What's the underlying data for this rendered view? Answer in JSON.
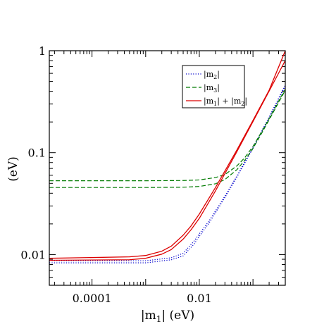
{
  "chart_data": {
    "type": "line",
    "xscale": "log",
    "yscale": "log",
    "xlim": [
      1.6e-05,
      0.4
    ],
    "ylim": [
      0.005,
      1
    ],
    "xlabel_main": "|m",
    "xlabel_sub": "1",
    "xlabel_rest": "| (eV)",
    "ylabel": "(eV)",
    "x_ticks": [
      {
        "value": 0.0001,
        "label": "0.0001"
      },
      {
        "value": 0.01,
        "label": "0.01"
      }
    ],
    "y_ticks": [
      {
        "value": 0.01,
        "label": "0.01"
      },
      {
        "value": 0.1,
        "label": "0.1"
      },
      {
        "value": 1,
        "label": "1"
      }
    ],
    "legend": {
      "position": "top-right",
      "entries": [
        {
          "key": "m2",
          "parts": [
            "|m",
            "2",
            "|"
          ],
          "color": "#0000cc",
          "dash": "1.2,2.2"
        },
        {
          "key": "m3",
          "parts": [
            "|m",
            "3",
            "|"
          ],
          "color": "#007a00",
          "dash": "6,3"
        },
        {
          "key": "sum",
          "parts": [
            "|m",
            "1",
            "| + |m",
            "2",
            "|"
          ],
          "color": "#dd0000",
          "dash": ""
        }
      ]
    },
    "series": [
      {
        "key": "m2",
        "color": "#0000cc",
        "dash": "1.2,2.2",
        "width": 1.2,
        "x": [
          1.6e-05,
          0.0001,
          0.001,
          0.003,
          0.005,
          0.008,
          0.01,
          0.015,
          0.02,
          0.03,
          0.05,
          0.1,
          0.2,
          0.4
        ],
        "y": [
          0.0083,
          0.0083,
          0.0083,
          0.0089,
          0.0097,
          0.0127,
          0.0151,
          0.0202,
          0.0257,
          0.0363,
          0.0575,
          0.11,
          0.22,
          0.45
        ]
      },
      {
        "key": "m2",
        "color": "#0000cc",
        "dash": "1.2,2.2",
        "width": 1.2,
        "x": [
          1.6e-05,
          0.0001,
          0.001,
          0.003,
          0.005,
          0.008,
          0.01,
          0.015,
          0.02,
          0.03,
          0.05,
          0.1,
          0.2,
          0.4
        ],
        "y": [
          0.0087,
          0.0087,
          0.0087,
          0.0093,
          0.0103,
          0.0136,
          0.016,
          0.0212,
          0.0268,
          0.0375,
          0.059,
          0.112,
          0.224,
          0.46
        ]
      },
      {
        "key": "m3",
        "color": "#007a00",
        "dash": "6,3",
        "width": 1.2,
        "x": [
          1.6e-05,
          0.0001,
          0.001,
          0.005,
          0.01,
          0.02,
          0.03,
          0.05,
          0.07,
          0.1,
          0.15,
          0.2,
          0.3,
          0.4
        ],
        "y": [
          0.0455,
          0.0455,
          0.0455,
          0.0458,
          0.0466,
          0.0495,
          0.0545,
          0.068,
          0.084,
          0.11,
          0.16,
          0.21,
          0.31,
          0.41
        ]
      },
      {
        "key": "m3",
        "color": "#007a00",
        "dash": "6,3",
        "width": 1.2,
        "x": [
          1.6e-05,
          0.0001,
          0.001,
          0.005,
          0.01,
          0.02,
          0.03,
          0.05,
          0.07,
          0.1,
          0.15,
          0.2,
          0.3,
          0.4
        ],
        "y": [
          0.053,
          0.053,
          0.053,
          0.0533,
          0.054,
          0.057,
          0.061,
          0.074,
          0.089,
          0.115,
          0.165,
          0.215,
          0.32,
          0.42
        ]
      },
      {
        "key": "sum",
        "color": "#dd0000",
        "dash": "",
        "width": 1.3,
        "x": [
          1.6e-05,
          0.0005,
          0.001,
          0.002,
          0.003,
          0.005,
          0.007,
          0.01,
          0.02,
          0.05,
          0.1,
          0.2,
          0.4
        ],
        "y": [
          0.0088,
          0.0089,
          0.0092,
          0.0101,
          0.0112,
          0.0142,
          0.0175,
          0.0227,
          0.0422,
          0.1021,
          0.202,
          0.402,
          0.802
        ]
      },
      {
        "key": "sum",
        "color": "#dd0000",
        "dash": "",
        "width": 1.3,
        "x": [
          1.6e-05,
          0.0005,
          0.001,
          0.002,
          0.003,
          0.005,
          0.007,
          0.01,
          0.02,
          0.05,
          0.1,
          0.2,
          0.4
        ],
        "y": [
          0.0092,
          0.0095,
          0.0098,
          0.0108,
          0.0121,
          0.0155,
          0.0191,
          0.025,
          0.0455,
          0.106,
          0.207,
          0.41,
          1.0
        ]
      }
    ]
  }
}
